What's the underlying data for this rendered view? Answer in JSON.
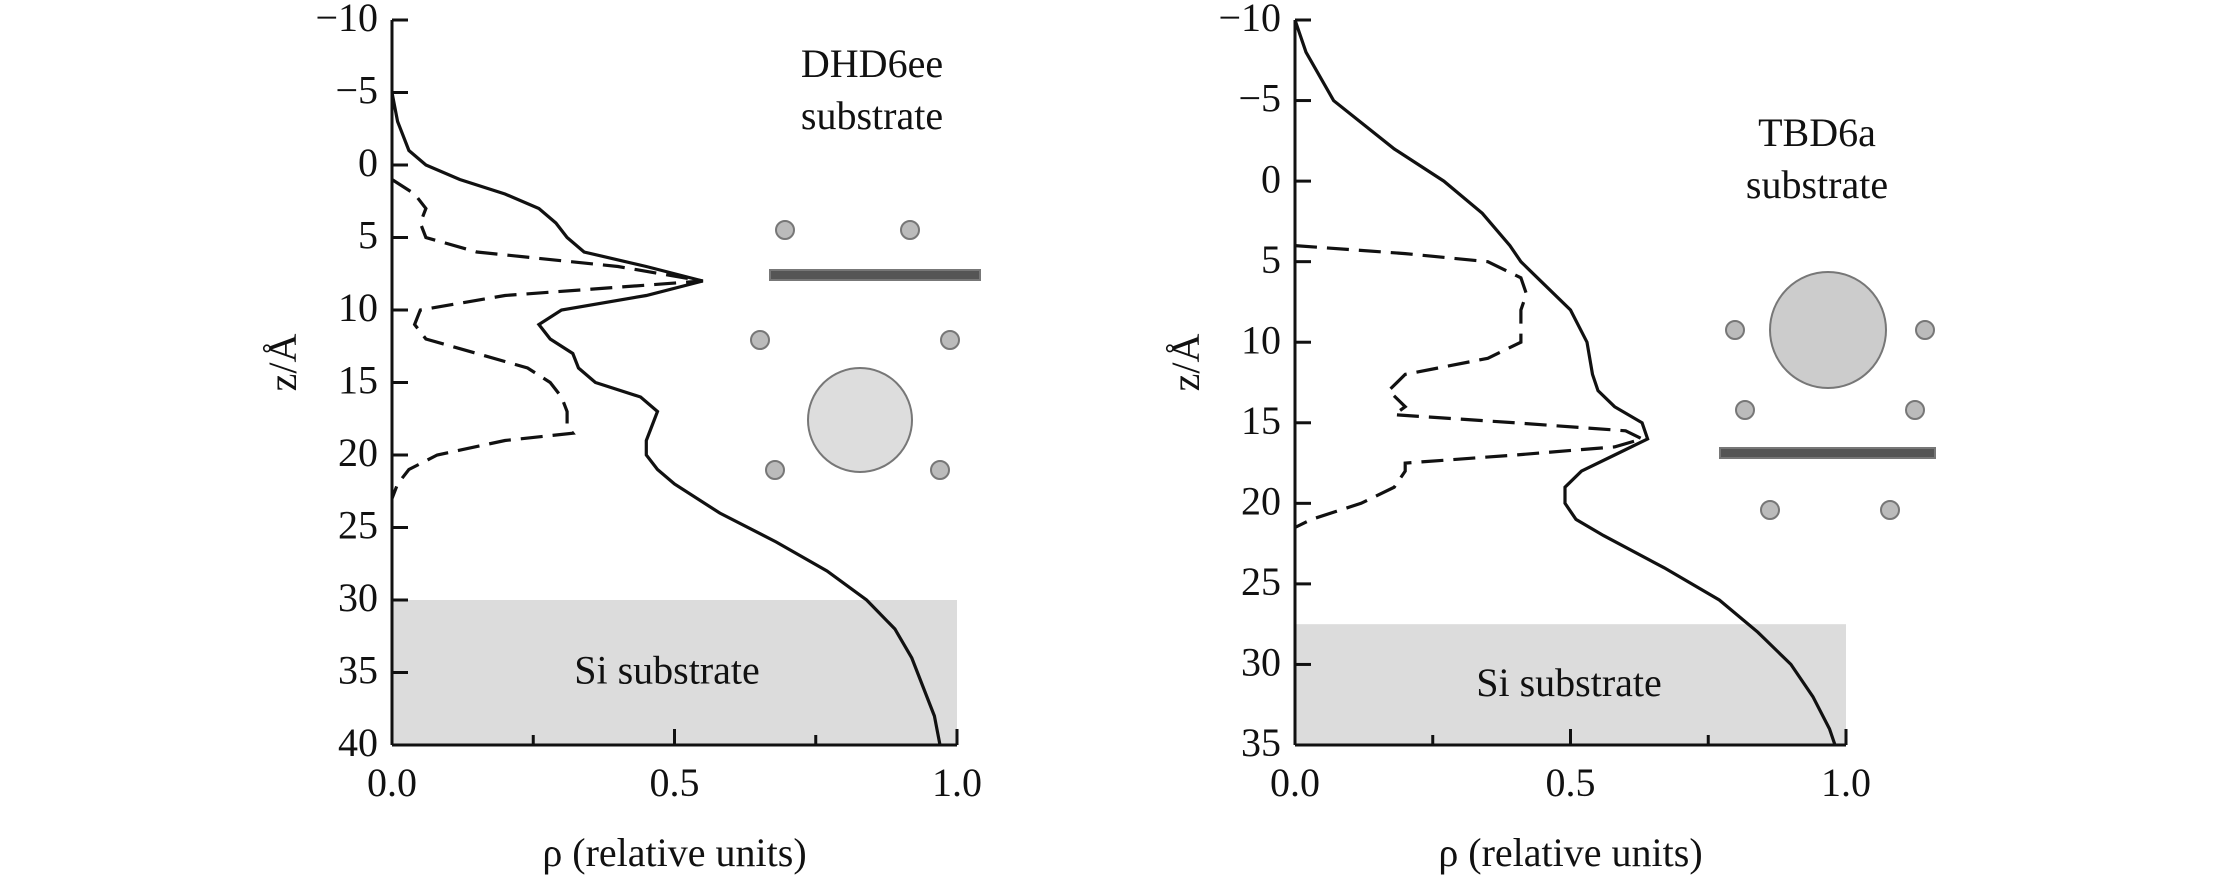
{
  "chart_data": [
    {
      "type": "line",
      "xlabel": "ρ (relative units)",
      "ylabel": "z/Å",
      "annotation": [
        "DHD6ee",
        "substrate"
      ],
      "region_label": "Si substrate",
      "region": [
        30,
        40
      ],
      "xlim": [
        0,
        1
      ],
      "ylim": [
        -10,
        40
      ],
      "y_inverted": true,
      "xticks": [
        {
          "value": 0,
          "label": "0.0"
        },
        {
          "value": 0.5,
          "label": "0.5"
        },
        {
          "value": 1,
          "label": "1.0"
        }
      ],
      "xminor": [
        0.25,
        0.75
      ],
      "yticks": [
        {
          "value": -10,
          "label": "−10"
        },
        {
          "value": -5,
          "label": "−5"
        },
        0,
        5,
        10,
        15,
        20,
        25,
        30,
        35,
        40
      ],
      "series": [
        {
          "style": "solid",
          "color": "#111111",
          "z": [
            -5,
            -3,
            -1,
            0,
            1,
            2,
            3,
            4,
            5,
            6,
            7,
            8,
            9,
            10,
            11,
            12,
            13,
            14,
            15,
            16,
            17,
            18,
            19,
            20,
            21,
            22,
            24,
            26,
            28,
            30,
            32,
            34,
            36,
            38,
            40
          ],
          "values": [
            0.0,
            0.01,
            0.03,
            0.06,
            0.12,
            0.2,
            0.26,
            0.29,
            0.31,
            0.34,
            0.45,
            0.55,
            0.45,
            0.3,
            0.26,
            0.28,
            0.32,
            0.33,
            0.36,
            0.44,
            0.47,
            0.46,
            0.45,
            0.45,
            0.47,
            0.5,
            0.58,
            0.68,
            0.77,
            0.84,
            0.89,
            0.92,
            0.94,
            0.96,
            0.97
          ]
        },
        {
          "style": "dashed",
          "color": "#111111",
          "z": [
            1,
            2,
            3,
            4,
            5,
            6,
            7,
            8,
            9,
            10,
            11,
            12,
            13,
            14,
            15,
            16,
            17,
            18,
            18.5,
            19,
            20,
            21,
            22,
            23
          ],
          "values": [
            0.0,
            0.04,
            0.06,
            0.05,
            0.06,
            0.15,
            0.4,
            0.55,
            0.2,
            0.05,
            0.04,
            0.06,
            0.15,
            0.24,
            0.28,
            0.3,
            0.31,
            0.31,
            0.32,
            0.2,
            0.08,
            0.03,
            0.01,
            0.0
          ]
        }
      ]
    },
    {
      "type": "line",
      "xlabel": "ρ (relative units)",
      "ylabel": "z/Å",
      "annotation": [
        "TBD6a",
        "substrate"
      ],
      "region_label": "Si substrate",
      "region": [
        27.5,
        35
      ],
      "xlim": [
        0,
        1
      ],
      "ylim": [
        -10,
        35
      ],
      "y_inverted": true,
      "xticks": [
        {
          "value": 0,
          "label": "0.0"
        },
        {
          "value": 0.5,
          "label": "0.5"
        },
        {
          "value": 1,
          "label": "1.0"
        }
      ],
      "xminor": [
        0.25,
        0.75
      ],
      "yticks": [
        {
          "value": -10,
          "label": "−10"
        },
        {
          "value": -5,
          "label": "−5"
        },
        0,
        5,
        10,
        15,
        20,
        25,
        30,
        35
      ],
      "series": [
        {
          "style": "solid",
          "color": "#111111",
          "z": [
            -10,
            -8,
            -5,
            -2,
            0,
            2,
            4,
            5,
            6,
            8,
            10,
            12,
            13,
            14,
            15,
            16,
            17,
            18,
            19,
            20,
            21,
            22,
            24,
            26,
            28,
            30,
            32,
            34,
            35
          ],
          "values": [
            0.0,
            0.02,
            0.07,
            0.18,
            0.27,
            0.34,
            0.39,
            0.41,
            0.44,
            0.5,
            0.53,
            0.54,
            0.55,
            0.58,
            0.63,
            0.64,
            0.58,
            0.52,
            0.49,
            0.49,
            0.51,
            0.56,
            0.67,
            0.77,
            0.84,
            0.9,
            0.94,
            0.97,
            0.98
          ]
        },
        {
          "style": "dashed",
          "color": "#111111",
          "z": [
            4,
            4.5,
            5,
            6,
            7,
            8,
            9,
            10,
            11,
            12,
            13,
            14,
            14.5,
            15,
            15.5,
            16,
            16.5,
            17,
            17.5,
            18,
            19,
            20,
            21,
            21.5
          ],
          "values": [
            0.0,
            0.2,
            0.35,
            0.41,
            0.42,
            0.41,
            0.41,
            0.41,
            0.35,
            0.2,
            0.17,
            0.2,
            0.18,
            0.4,
            0.6,
            0.63,
            0.58,
            0.4,
            0.2,
            0.2,
            0.18,
            0.12,
            0.03,
            0.0
          ]
        }
      ]
    }
  ]
}
